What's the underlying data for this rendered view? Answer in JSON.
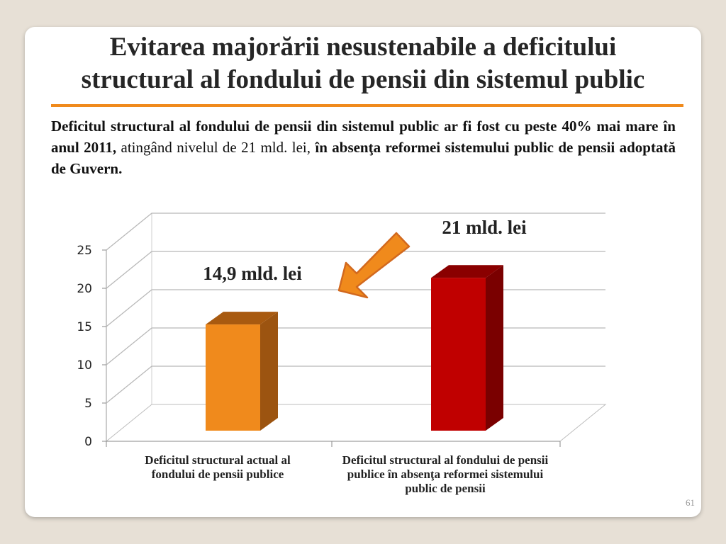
{
  "slide": {
    "title_line1": "Evitarea majorării nesustenabile a deficitului",
    "title_line2": "structural al fondului de pensii din sistemul public",
    "lead_bold1": "Deficitul structural al fondului de pensii din sistemul public ar fi fost cu peste 40% mai mare în anul 2011,",
    "lead_normal": " atingând nivelul de 21 mld. lei, ",
    "lead_bold2": "în absenţa reformei sistemului public de pensii adoptată de Guvern.",
    "page_number": "61"
  },
  "colors": {
    "accent_rule": "#f08a1c",
    "bar1": "#f08a1c",
    "bar2": "#c00000",
    "arrow": "#f08a1c"
  },
  "chart_data": {
    "type": "bar",
    "categories": [
      "Deficitul structural actual al fondului de pensii publice",
      "Deficitul structural al fondului de pensii publice în absenţa reformei sistemului public de pensii"
    ],
    "values": [
      14.9,
      21
    ],
    "data_labels": [
      "14,9 mld. lei",
      "21 mld. lei"
    ],
    "ylim": [
      0,
      25
    ],
    "yticks": [
      "0",
      "5",
      "10",
      "15",
      "20",
      "25"
    ],
    "grid": true,
    "style": "3d-column",
    "annotation": "arrow pointing from the second bar toward the first"
  }
}
